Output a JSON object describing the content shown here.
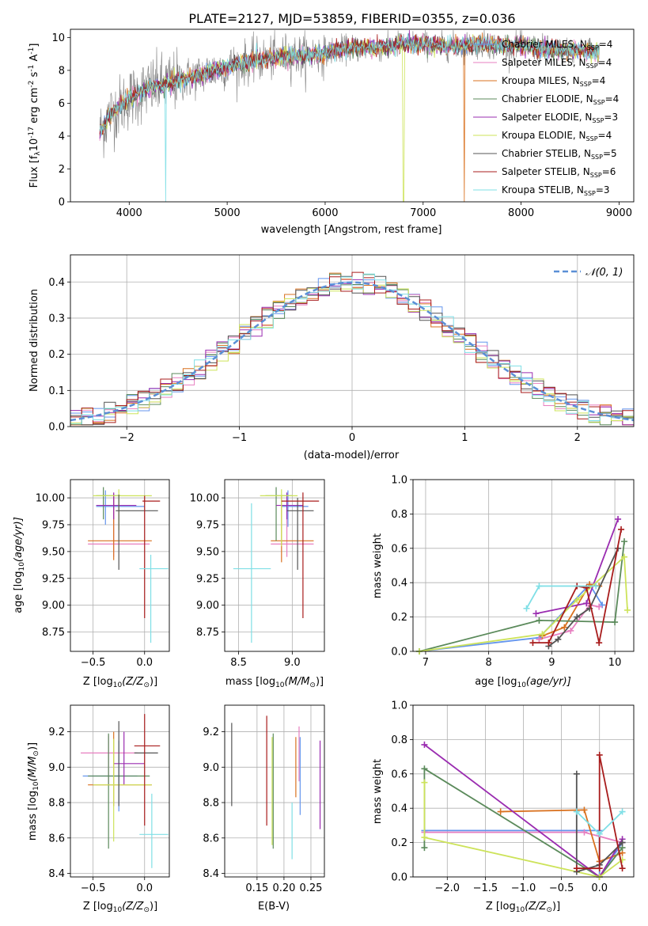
{
  "figure": {
    "title": "PLATE=2127, MJD=53859, FIBERID=0355, z=0.036"
  },
  "models": [
    {
      "key": "chab_miles",
      "color": "#6495ed"
    },
    {
      "key": "salp_miles",
      "color": "#e77fc0"
    },
    {
      "key": "krou_miles",
      "color": "#d9711f"
    },
    {
      "key": "chab_elodie",
      "color": "#5b8a5b"
    },
    {
      "key": "salp_elodie",
      "color": "#9a2cb0"
    },
    {
      "key": "krou_elodie",
      "color": "#cde35a"
    },
    {
      "key": "chab_stelib",
      "color": "#545454"
    },
    {
      "key": "salp_stelib",
      "color": "#a81c1c"
    },
    {
      "key": "krou_stelib",
      "color": "#7fdfe6"
    }
  ],
  "chart_data": [
    {
      "id": "spectrum",
      "type": "line",
      "title": "PLATE=2127, MJD=53859, FIBERID=0355, z=0.036",
      "xlabel": "wavelength [Angstrom, rest frame]",
      "ylabel_main": "Flux [f",
      "ylabel_sub": "λ",
      "ylabel_rest": "10",
      "ylabel_exp": "-17",
      "ylabel_units": " erg cm",
      "ylabel_exp2": "-2",
      "ylabel_s": " s",
      "ylabel_exp3": "-1",
      "ylabel_end": " A",
      "ylabel_exp4": "-1",
      "ylabel_close": "]",
      "xlim": [
        3400,
        9150
      ],
      "ylim": [
        0,
        10.5
      ],
      "xticks": [
        4000,
        5000,
        6000,
        7000,
        8000,
        9000
      ],
      "yticks": [
        0,
        2,
        4,
        6,
        8,
        10
      ],
      "data_color": "#808080",
      "continuum": {
        "x": [
          3700,
          3800,
          3900,
          4000,
          4200,
          4400,
          4600,
          4800,
          5000,
          5200,
          5400,
          5600,
          5800,
          6000,
          6200,
          6400,
          6600,
          6800,
          7000,
          7200,
          7400,
          7600,
          7800,
          8000,
          8200,
          8400,
          8600,
          8800
        ],
        "y": [
          4.2,
          5.3,
          5.8,
          6.3,
          6.9,
          7.2,
          7.5,
          7.9,
          8.2,
          8.5,
          8.7,
          8.9,
          8.9,
          9.1,
          9.3,
          9.4,
          9.4,
          9.6,
          9.6,
          9.5,
          9.5,
          9.6,
          9.5,
          9.5,
          9.3,
          9.2,
          9.2,
          9.1
        ]
      },
      "legend": [
        {
          "pre": "Chabrier MILES, N",
          "sub": "SSP",
          "post": "=4"
        },
        {
          "pre": "Salpeter MILES, N",
          "sub": "SSP",
          "post": "=4"
        },
        {
          "pre": "Kroupa MILES, N",
          "sub": "SSP",
          "post": "=4"
        },
        {
          "pre": "Chabrier ELODIE, N",
          "sub": "SSP",
          "post": "=4"
        },
        {
          "pre": "Salpeter ELODIE, N",
          "sub": "SSP",
          "post": "=3"
        },
        {
          "pre": "Kroupa ELODIE, N",
          "sub": "SSP",
          "post": "=4"
        },
        {
          "pre": "Chabrier STELIB, N",
          "sub": "SSP",
          "post": "=5"
        },
        {
          "pre": "Salpeter STELIB, N",
          "sub": "SSP",
          "post": "=6"
        },
        {
          "pre": "Kroupa STELIB, N",
          "sub": "SSP",
          "post": "=3"
        }
      ],
      "legend_position": "top-right"
    },
    {
      "id": "residuals",
      "type": "histogram",
      "xlabel": "(data-model)/error",
      "ylabel": "Normed distribution",
      "xlim": [
        -2.5,
        2.5
      ],
      "ylim": [
        0,
        0.475
      ],
      "xticks": [
        -2,
        -1,
        0,
        1,
        2
      ],
      "yticks": [
        0.0,
        0.1,
        0.2,
        0.3,
        0.4
      ],
      "bin_width": 0.1,
      "grid": true,
      "reference_curve": "normal(0,1)",
      "reference_color": "#5b8fd6",
      "legend": [
        {
          "label": "𝒩(0, 1)"
        }
      ],
      "legend_position": "top-right"
    },
    {
      "id": "age_vs_Z",
      "type": "errorbar",
      "xlabel_pre": "Z [log",
      "xlabel_sub": "10",
      "xlabel_post": "(Z/Z",
      "xlabel_sub2": "⊙",
      "xlabel_end": ")]",
      "ylabel_pre": "age  [log",
      "ylabel_sub": "10",
      "ylabel_post": "(age/yr)]",
      "xlim": [
        -0.72,
        0.24
      ],
      "ylim": [
        8.57,
        10.17
      ],
      "xticks": [
        -0.5,
        0.0
      ],
      "yticks": [
        8.75,
        9.0,
        9.25,
        9.5,
        9.75,
        10.0
      ],
      "points": [
        {
          "m": 0,
          "x": -0.38,
          "xe": [
            -0.47,
            0.0
          ],
          "y": 9.92,
          "ye": [
            9.75,
            10.07
          ]
        },
        {
          "m": 1,
          "x": -0.3,
          "xe": [
            -0.55,
            0.05
          ],
          "y": 9.57,
          "ye": [
            9.45,
            10.04
          ]
        },
        {
          "m": 2,
          "x": -0.3,
          "xe": [
            -0.55,
            0.07
          ],
          "y": 9.6,
          "ye": [
            9.42,
            10.02
          ]
        },
        {
          "m": 3,
          "x": -0.4,
          "xe": [
            -0.47,
            -0.23
          ],
          "y": 10.02,
          "ye": [
            9.8,
            10.1
          ]
        },
        {
          "m": 4,
          "x": -0.3,
          "xe": [
            -0.47,
            -0.08
          ],
          "y": 9.93,
          "ye": [
            9.8,
            10.05
          ]
        },
        {
          "m": 5,
          "x": -0.25,
          "xe": [
            -0.5,
            0.07
          ],
          "y": 10.02,
          "ye": [
            9.7,
            10.08
          ]
        },
        {
          "m": 6,
          "x": -0.25,
          "xe": [
            -0.28,
            0.13
          ],
          "y": 9.88,
          "ye": [
            9.33,
            10.03
          ]
        },
        {
          "m": 7,
          "x": 0.0,
          "xe": [
            -0.02,
            0.15
          ],
          "y": 9.97,
          "ye": [
            8.88,
            10.02
          ]
        },
        {
          "m": 8,
          "x": 0.06,
          "xe": [
            -0.05,
            0.23
          ],
          "y": 9.34,
          "ye": [
            8.65,
            9.47
          ]
        }
      ]
    },
    {
      "id": "age_vs_mass",
      "type": "errorbar",
      "xlabel_pre": "mass [log",
      "xlabel_sub": "10",
      "xlabel_post": "(M/M",
      "xlabel_sub2": "⊙",
      "xlabel_end": ")]",
      "xlim": [
        8.37,
        9.3
      ],
      "ylim": [
        8.57,
        10.17
      ],
      "xticks": [
        8.5,
        9.0
      ],
      "yticks": [
        8.75,
        9.0,
        9.25,
        9.5,
        9.75,
        10.0
      ],
      "points": [
        {
          "m": 0,
          "x": 8.96,
          "xe": [
            8.9,
            9.15
          ],
          "y": 9.92,
          "ye": [
            9.73,
            10.07
          ]
        },
        {
          "m": 1,
          "x": 8.95,
          "xe": [
            8.8,
            9.2
          ],
          "y": 9.57,
          "ye": [
            9.45,
            10.0
          ]
        },
        {
          "m": 2,
          "x": 8.9,
          "xe": [
            8.8,
            9.2
          ],
          "y": 9.6,
          "ye": [
            9.4,
            10.02
          ]
        },
        {
          "m": 3,
          "x": 8.85,
          "xe": [
            8.75,
            9.0
          ],
          "y": 10.02,
          "ye": [
            9.6,
            10.1
          ]
        },
        {
          "m": 4,
          "x": 8.95,
          "xe": [
            8.85,
            9.1
          ],
          "y": 9.93,
          "ye": [
            9.8,
            10.05
          ]
        },
        {
          "m": 5,
          "x": 8.9,
          "xe": [
            8.7,
            9.05
          ],
          "y": 10.02,
          "ye": [
            9.55,
            10.08
          ]
        },
        {
          "m": 6,
          "x": 9.05,
          "xe": [
            8.95,
            9.2
          ],
          "y": 9.88,
          "ye": [
            9.33,
            10.0
          ]
        },
        {
          "m": 7,
          "x": 9.1,
          "xe": [
            8.9,
            9.25
          ],
          "y": 9.97,
          "ye": [
            8.88,
            10.05
          ]
        },
        {
          "m": 8,
          "x": 8.62,
          "xe": [
            8.45,
            8.8
          ],
          "y": 9.34,
          "ye": [
            8.65,
            9.95
          ]
        }
      ]
    },
    {
      "id": "weight_vs_age",
      "type": "line",
      "xlabel_pre": "age  [log",
      "xlabel_sub": "10",
      "xlabel_post": "(age/yr)]",
      "ylabel": "mass weight",
      "xlim": [
        6.8,
        10.3
      ],
      "ylim": [
        0,
        1.0
      ],
      "xticks": [
        7,
        8,
        9,
        10
      ],
      "yticks": [
        0.0,
        0.2,
        0.4,
        0.6,
        0.8,
        1.0
      ],
      "grid": true,
      "series": [
        {
          "m": 0,
          "x": [
            6.9,
            8.8,
            9.6,
            9.8
          ],
          "y": [
            0.0,
            0.08,
            0.39,
            0.27
          ]
        },
        {
          "m": 1,
          "x": [
            8.8,
            9.3,
            9.6,
            9.75
          ],
          "y": [
            0.07,
            0.12,
            0.27,
            0.26
          ]
        },
        {
          "m": 2,
          "x": [
            8.85,
            9.2,
            9.6,
            9.75
          ],
          "y": [
            0.09,
            0.14,
            0.39,
            0.38
          ]
        },
        {
          "m": 3,
          "x": [
            6.9,
            8.8,
            10.0,
            10.15
          ],
          "y": [
            0.0,
            0.18,
            0.17,
            0.64
          ]
        },
        {
          "m": 4,
          "x": [
            8.75,
            9.55,
            10.05
          ],
          "y": [
            0.22,
            0.28,
            0.77
          ]
        },
        {
          "m": 5,
          "x": [
            6.9,
            8.85,
            9.4,
            10.15,
            10.2
          ],
          "y": [
            0.0,
            0.1,
            0.3,
            0.55,
            0.24
          ]
        },
        {
          "m": 6,
          "x": [
            8.95,
            9.1,
            9.4,
            9.6,
            10.05
          ],
          "y": [
            0.03,
            0.07,
            0.2,
            0.25,
            0.6
          ]
        },
        {
          "m": 7,
          "x": [
            8.7,
            8.95,
            9.4,
            9.55,
            9.75,
            10.1
          ],
          "y": [
            0.05,
            0.05,
            0.38,
            0.37,
            0.05,
            0.71
          ]
        },
        {
          "m": 8,
          "x": [
            8.6,
            8.8,
            9.7
          ],
          "y": [
            0.25,
            0.38,
            0.38
          ]
        }
      ]
    },
    {
      "id": "mass_vs_Z",
      "type": "errorbar",
      "xlabel_pre": "Z [log",
      "xlabel_sub": "10",
      "xlabel_post": "(Z/Z",
      "xlabel_sub2": "⊙",
      "xlabel_end": ")]",
      "ylabel_pre": "mass [log",
      "ylabel_sub": "10",
      "ylabel_post": "(M/M",
      "ylabel_sub2": "⊙",
      "ylabel_end": ")]",
      "xlim": [
        -0.72,
        0.24
      ],
      "ylim": [
        8.38,
        9.35
      ],
      "xticks": [
        -0.5,
        0.0
      ],
      "yticks": [
        8.4,
        8.6,
        8.8,
        9.0,
        9.2
      ],
      "points": [
        {
          "m": 0,
          "x": -0.25,
          "xe": [
            -0.6,
            -0.07
          ],
          "y": 8.95,
          "ye": [
            8.75,
            9.15
          ]
        },
        {
          "m": 1,
          "x": -0.35,
          "xe": [
            -0.62,
            -0.07
          ],
          "y": 9.08,
          "ye": [
            8.9,
            9.18
          ]
        },
        {
          "m": 2,
          "x": -0.3,
          "xe": [
            -0.55,
            0.07
          ],
          "y": 8.9,
          "ye": [
            8.78,
            9.2
          ]
        },
        {
          "m": 3,
          "x": -0.35,
          "xe": [
            -0.55,
            0.05
          ],
          "y": 8.95,
          "ye": [
            8.54,
            9.19
          ]
        },
        {
          "m": 4,
          "x": -0.2,
          "xe": [
            -0.3,
            0.0
          ],
          "y": 9.02,
          "ye": [
            8.9,
            9.2
          ]
        },
        {
          "m": 5,
          "x": -0.3,
          "xe": [
            -0.5,
            0.07
          ],
          "y": 8.9,
          "ye": [
            8.58,
            9.16
          ]
        },
        {
          "m": 6,
          "x": -0.25,
          "xe": [
            -0.1,
            0.13
          ],
          "y": 9.08,
          "ye": [
            8.78,
            9.26
          ]
        },
        {
          "m": 7,
          "x": 0.0,
          "xe": [
            -0.1,
            0.15
          ],
          "y": 9.12,
          "ye": [
            8.67,
            9.3
          ]
        },
        {
          "m": 8,
          "x": 0.07,
          "xe": [
            -0.05,
            0.23
          ],
          "y": 8.62,
          "ye": [
            8.43,
            8.85
          ]
        }
      ]
    },
    {
      "id": "mass_vs_ebv",
      "type": "errorbar",
      "xlabel": "E(B-V)",
      "xlim": [
        0.09,
        0.275
      ],
      "ylim": [
        8.38,
        9.35
      ],
      "xticks": [
        0.15,
        0.2,
        0.25
      ],
      "yticks": [
        8.4,
        8.6,
        8.8,
        9.0,
        9.2
      ],
      "points": [
        {
          "m": 6,
          "x": 0.103,
          "y": 9.0,
          "ye": [
            8.78,
            9.25
          ]
        },
        {
          "m": 7,
          "x": 0.168,
          "y": 8.98,
          "ye": [
            8.67,
            9.29
          ]
        },
        {
          "m": 5,
          "x": 0.178,
          "y": 8.86,
          "ye": [
            8.56,
            9.17
          ]
        },
        {
          "m": 3,
          "x": 0.18,
          "y": 8.9,
          "ye": [
            8.54,
            9.19
          ]
        },
        {
          "m": 8,
          "x": 0.215,
          "y": 8.63,
          "ye": [
            8.48,
            8.8
          ]
        },
        {
          "m": 2,
          "x": 0.222,
          "y": 9.0,
          "ye": [
            8.83,
            9.17
          ]
        },
        {
          "m": 1,
          "x": 0.228,
          "y": 9.05,
          "ye": [
            8.92,
            9.23
          ]
        },
        {
          "m": 0,
          "x": 0.23,
          "y": 8.95,
          "ye": [
            8.73,
            9.17
          ]
        },
        {
          "m": 4,
          "x": 0.267,
          "y": 8.9,
          "ye": [
            8.65,
            9.15
          ]
        }
      ]
    },
    {
      "id": "weight_vs_Z",
      "type": "line",
      "xlabel_pre": "Z [log",
      "xlabel_sub": "10",
      "xlabel_post": "(Z/Z",
      "xlabel_sub2": "⊙",
      "xlabel_end": ")]",
      "ylabel": "mass weight",
      "xlim": [
        -2.45,
        0.45
      ],
      "ylim": [
        0,
        1.0
      ],
      "xticks": [
        -2.0,
        -1.5,
        -1.0,
        -0.5,
        0.0
      ],
      "yticks": [
        0.0,
        0.2,
        0.4,
        0.6,
        0.8,
        1.0
      ],
      "grid": true,
      "series": [
        {
          "m": 0,
          "x": [
            -2.3,
            0.0,
            0.0,
            0.3
          ],
          "y": [
            0.27,
            0.27,
            0.0,
            0.2
          ]
        },
        {
          "m": 1,
          "x": [
            -2.3,
            -0.2,
            0.3
          ],
          "y": [
            0.26,
            0.26,
            0.2
          ]
        },
        {
          "m": 2,
          "x": [
            -1.3,
            -0.2,
            0.0,
            0.3
          ],
          "y": [
            0.38,
            0.39,
            0.09,
            0.14
          ]
        },
        {
          "m": 3,
          "x": [
            -2.3,
            -2.3,
            0.0,
            0.3
          ],
          "y": [
            0.17,
            0.63,
            0.0,
            0.17
          ]
        },
        {
          "m": 4,
          "x": [
            -2.3,
            0.0,
            0.3
          ],
          "y": [
            0.77,
            0.0,
            0.22
          ]
        },
        {
          "m": 5,
          "x": [
            -2.3,
            -2.3,
            0.0,
            0.3
          ],
          "y": [
            0.55,
            0.23,
            0.0,
            0.1
          ]
        },
        {
          "m": 6,
          "x": [
            -0.3,
            -0.3,
            0.0,
            0.3
          ],
          "y": [
            0.6,
            0.03,
            0.07,
            0.2
          ]
        },
        {
          "m": 7,
          "x": [
            -0.3,
            0.0,
            0.0,
            0.3
          ],
          "y": [
            0.05,
            0.05,
            0.71,
            0.05
          ]
        },
        {
          "m": 8,
          "x": [
            -0.3,
            0.0,
            0.3
          ],
          "y": [
            0.38,
            0.25,
            0.38
          ]
        }
      ]
    }
  ]
}
